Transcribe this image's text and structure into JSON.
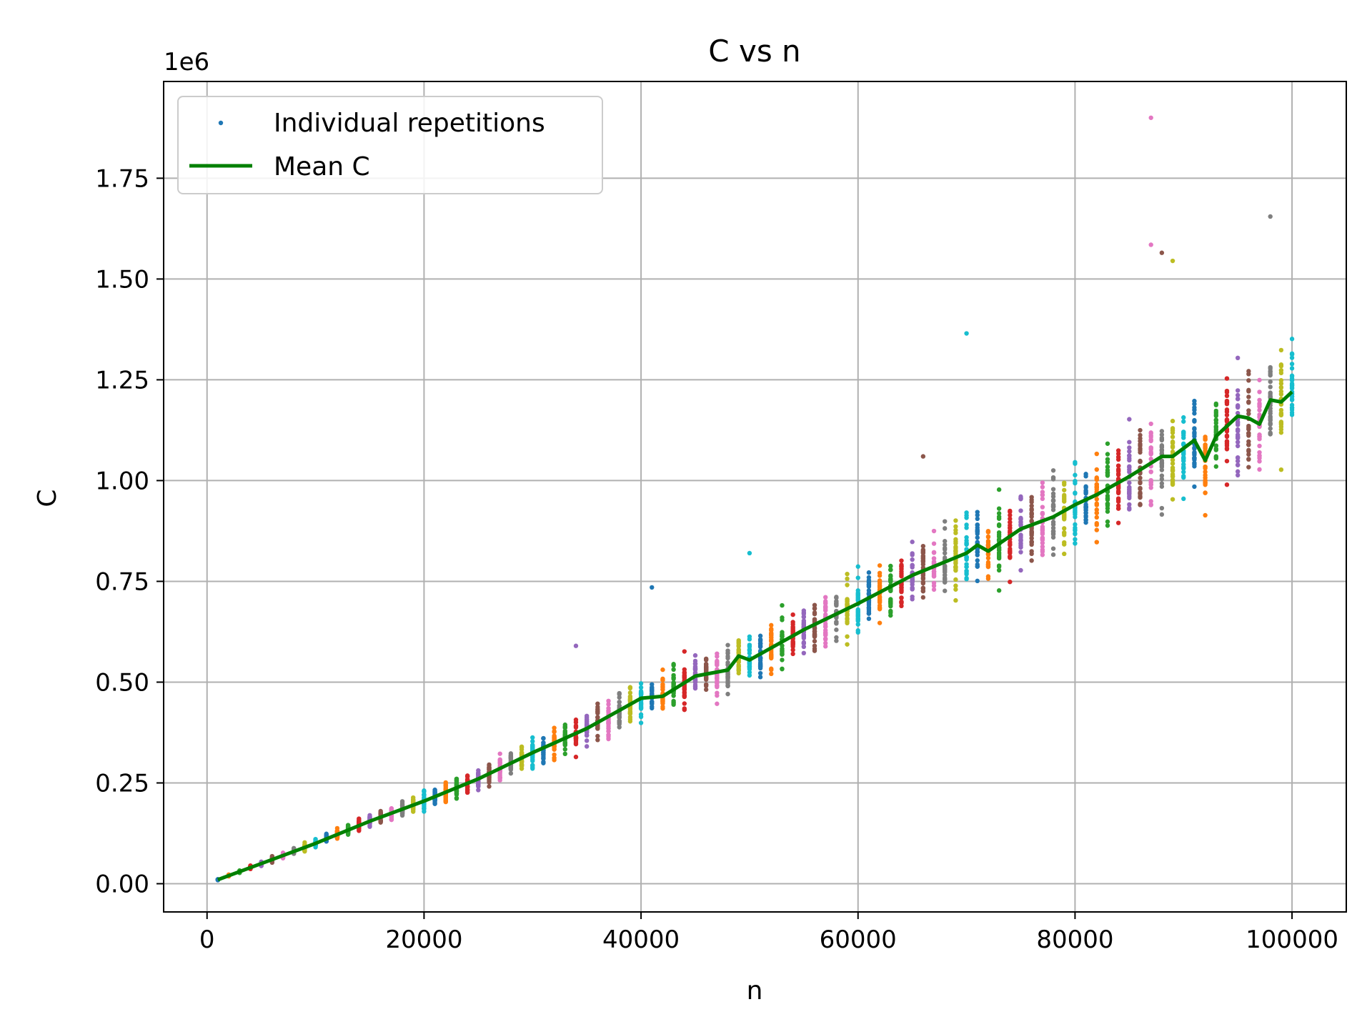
{
  "chart_data": {
    "type": "scatter",
    "title": "C vs n",
    "xlabel": "n",
    "ylabel": "C",
    "y_offset_label": "1e6",
    "xlim": [
      -4000,
      105000
    ],
    "ylim": [
      -0.07,
      1.99
    ],
    "x_ticks": [
      0,
      20000,
      40000,
      60000,
      80000,
      100000
    ],
    "x_tick_labels": [
      "0",
      "20000",
      "40000",
      "60000",
      "80000",
      "100000"
    ],
    "y_ticks": [
      0.0,
      0.25,
      0.5,
      0.75,
      1.0,
      1.25,
      1.5,
      1.75
    ],
    "y_tick_labels": [
      "0.00",
      "0.25",
      "0.50",
      "0.75",
      "1.00",
      "1.25",
      "1.50",
      "1.75"
    ],
    "y_units_multiplier": 1000000,
    "grid": true,
    "legend_position": "upper-left",
    "legend": [
      {
        "label": "Individual repetitions",
        "kind": "point",
        "color": "#1f77b4"
      },
      {
        "label": "Mean C",
        "kind": "line",
        "color": "#008000"
      }
    ],
    "palette": [
      "#1f77b4",
      "#ff7f0e",
      "#2ca02c",
      "#d62728",
      "#9467bd",
      "#8c564b",
      "#e377c2",
      "#7f7f7f",
      "#bcbd22",
      "#17becf"
    ],
    "scatter_columns": {
      "n_start": 1000,
      "n_step": 1000,
      "n_count": 100,
      "points_per_column": 30,
      "spread_note": "repetitions spread about the mean, widening with n"
    },
    "series": [
      {
        "name": "Mean C",
        "type": "line",
        "color": "#008000",
        "x": [
          1000,
          5000,
          10000,
          15000,
          20000,
          25000,
          30000,
          35000,
          40000,
          42000,
          45000,
          48000,
          49000,
          50000,
          55000,
          60000,
          65000,
          70000,
          71000,
          72000,
          75000,
          78000,
          80000,
          82000,
          85000,
          88000,
          89000,
          90000,
          91000,
          92000,
          93000,
          95000,
          96000,
          97000,
          98000,
          99000,
          100000
        ],
        "y": [
          0.01,
          0.05,
          0.1,
          0.155,
          0.205,
          0.26,
          0.325,
          0.385,
          0.46,
          0.465,
          0.515,
          0.53,
          0.565,
          0.555,
          0.63,
          0.695,
          0.765,
          0.82,
          0.84,
          0.825,
          0.88,
          0.91,
          0.94,
          0.965,
          1.01,
          1.06,
          1.06,
          1.08,
          1.1,
          1.05,
          1.11,
          1.16,
          1.155,
          1.14,
          1.2,
          1.195,
          1.22
        ]
      }
    ],
    "outliers": [
      {
        "x": 87000,
        "y": 1.9,
        "color": "#e377c2"
      },
      {
        "x": 98000,
        "y": 1.655,
        "color": "#7f7f7f"
      },
      {
        "x": 87000,
        "y": 1.585,
        "color": "#e377c2"
      },
      {
        "x": 88000,
        "y": 1.565,
        "color": "#8c564b"
      },
      {
        "x": 89000,
        "y": 1.545,
        "color": "#bcbd22"
      },
      {
        "x": 70000,
        "y": 1.365,
        "color": "#17becf"
      },
      {
        "x": 41000,
        "y": 0.735,
        "color": "#1f77b4"
      },
      {
        "x": 34000,
        "y": 0.59,
        "color": "#9467bd"
      },
      {
        "x": 50000,
        "y": 0.82,
        "color": "#17becf"
      },
      {
        "x": 66000,
        "y": 1.06,
        "color": "#8c564b"
      }
    ]
  }
}
